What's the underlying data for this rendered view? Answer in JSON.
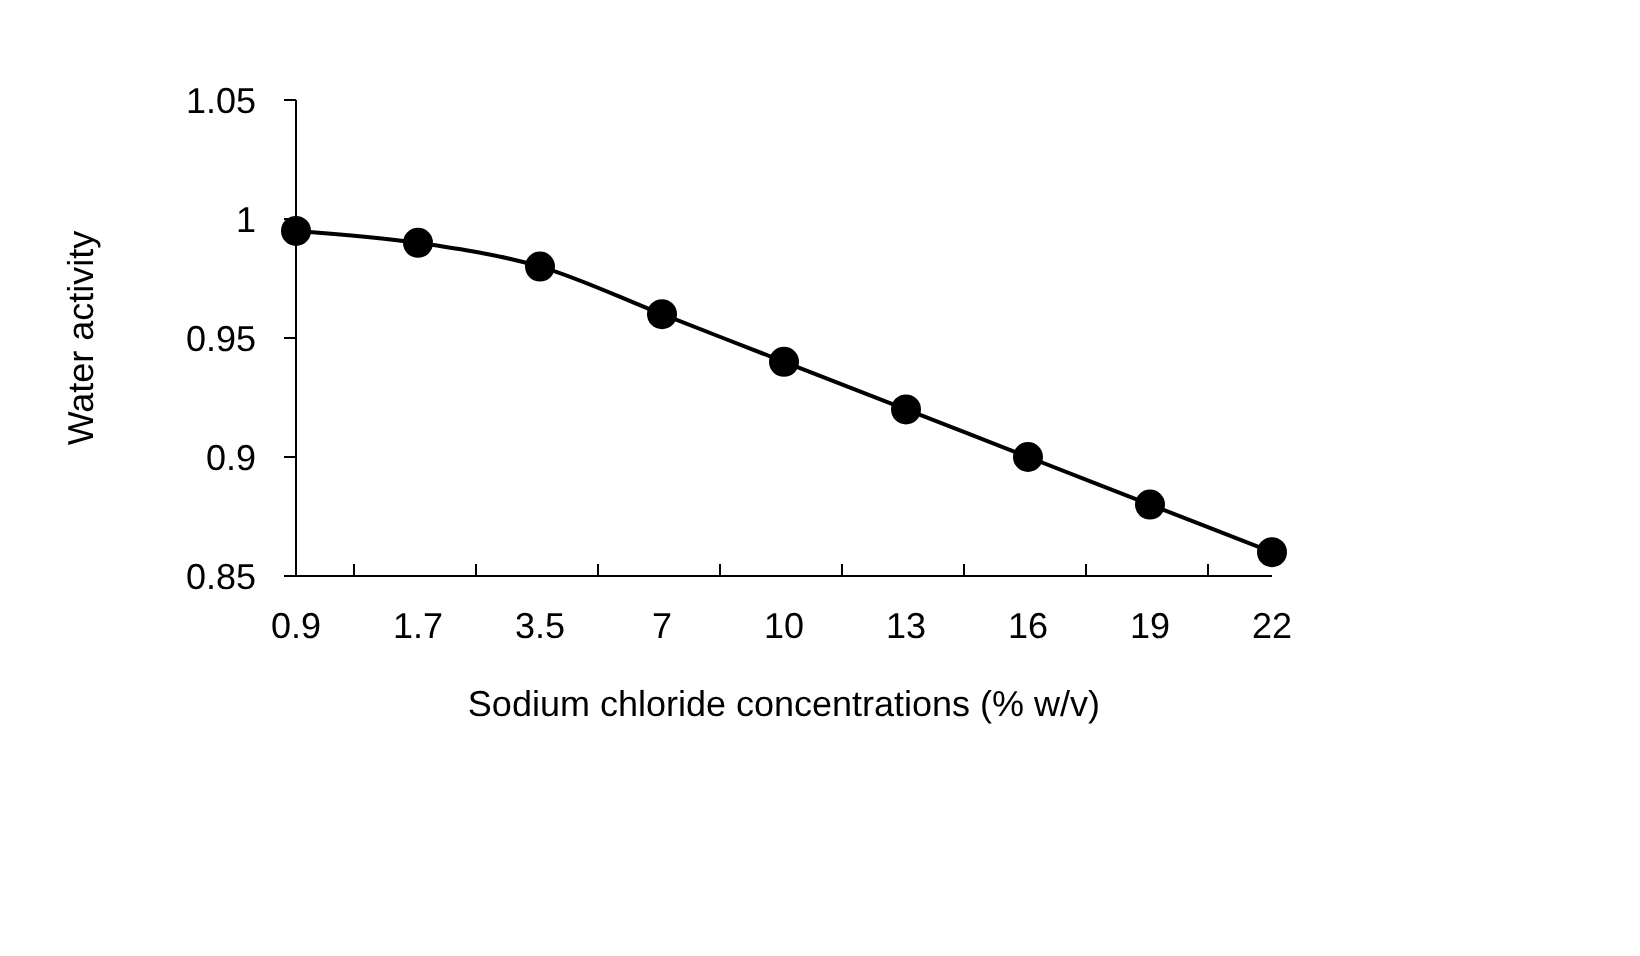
{
  "chart_data": {
    "type": "line",
    "xlabel": "Sodium chloride concentrations (% w/v)",
    "ylabel": "Water activity",
    "categories": [
      "0.9",
      "1.7",
      "3.5",
      "7",
      "10",
      "13",
      "16",
      "19",
      "22"
    ],
    "series": [
      {
        "color": "#000000",
        "values": [
          0.995,
          0.99,
          0.98,
          0.96,
          0.94,
          0.92,
          0.9,
          0.88,
          0.86
        ]
      }
    ],
    "ylim": [
      0.85,
      1.05
    ],
    "yticks": [
      0.85,
      0.9,
      0.95,
      1,
      1.05
    ],
    "grid": false,
    "legend": false,
    "marker": "circle",
    "line_style": "solid"
  }
}
